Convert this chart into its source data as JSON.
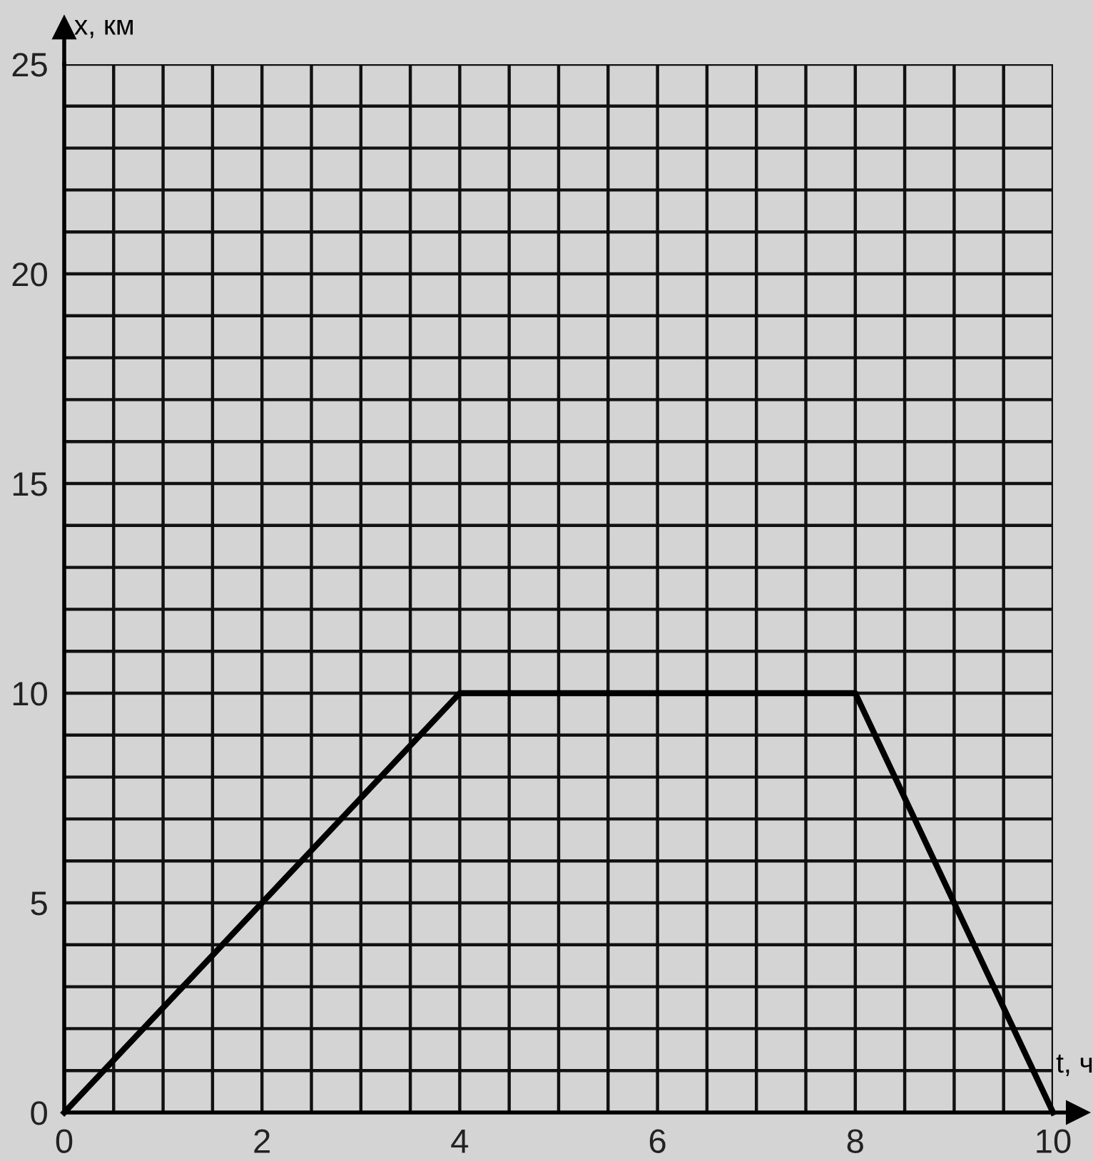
{
  "chart_data": {
    "type": "line",
    "xlabel": "t, ч",
    "ylabel": "x, км",
    "x": [
      0,
      4,
      8,
      10
    ],
    "series": [
      {
        "color": "#000000",
        "values": [
          0,
          10,
          10,
          0
        ]
      }
    ],
    "xlim": [
      0,
      10
    ],
    "ylim": [
      0,
      25
    ],
    "xticks": [
      0,
      {
        "value": 0.5,
        "label": null
      },
      {
        "value": 1,
        "label": null
      },
      {
        "value": 1.5,
        "label": null
      },
      2,
      {
        "value": 2.5,
        "label": null
      },
      {
        "value": 3,
        "label": null
      },
      {
        "value": 3.5,
        "label": null
      },
      4,
      {
        "value": 4.5,
        "label": null
      },
      {
        "value": 5,
        "label": null
      },
      {
        "value": 5.5,
        "label": null
      },
      6,
      {
        "value": 6.5,
        "label": null
      },
      {
        "value": 7,
        "label": null
      },
      {
        "value": 7.5,
        "label": null
      },
      8,
      {
        "value": 8.5,
        "label": null
      },
      {
        "value": 9,
        "label": null
      },
      {
        "value": 9.5,
        "label": null
      },
      10
    ],
    "yticks": [
      0,
      {
        "value": 1,
        "label": null
      },
      {
        "value": 2,
        "label": null
      },
      {
        "value": 3,
        "label": null
      },
      {
        "value": 4,
        "label": null
      },
      5,
      {
        "value": 6,
        "label": null
      },
      {
        "value": 7,
        "label": null
      },
      {
        "value": 8,
        "label": null
      },
      {
        "value": 9,
        "label": null
      },
      10,
      {
        "value": 11,
        "label": null
      },
      {
        "value": 12,
        "label": null
      },
      {
        "value": 13,
        "label": null
      },
      {
        "value": 14,
        "label": null
      },
      15,
      {
        "value": 16,
        "label": null
      },
      {
        "value": 17,
        "label": null
      },
      {
        "value": 18,
        "label": null
      },
      {
        "value": 19,
        "label": null
      },
      20,
      {
        "value": 21,
        "label": null
      },
      {
        "value": 22,
        "label": null
      },
      {
        "value": 23,
        "label": null
      },
      {
        "value": 24,
        "label": null
      },
      25
    ],
    "grid": true,
    "marker": "none",
    "line_style": "solid"
  }
}
